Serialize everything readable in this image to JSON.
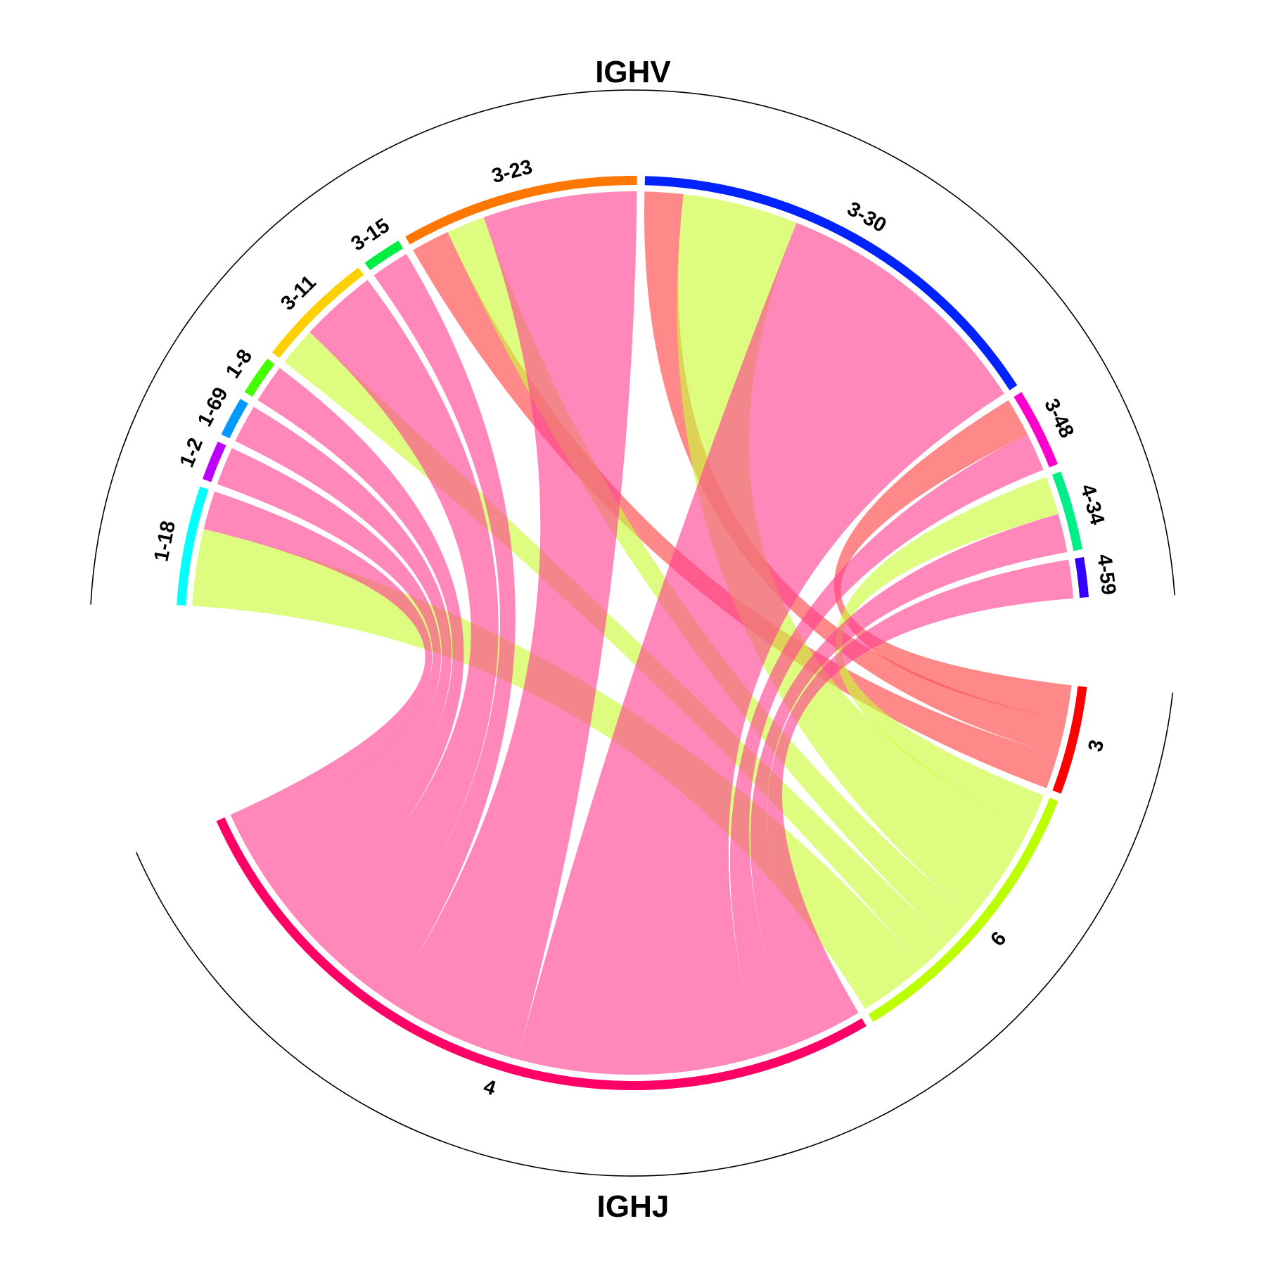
{
  "chart_data": {
    "type": "chord",
    "top_group_title": "IGHV",
    "bottom_group_title": "IGHJ",
    "top_segments": [
      {
        "name": "1-18",
        "color": "#00FFFF"
      },
      {
        "name": "1-2",
        "color": "#BB00FF"
      },
      {
        "name": "1-69",
        "color": "#0099FF"
      },
      {
        "name": "1-8",
        "color": "#44FF00"
      },
      {
        "name": "3-11",
        "color": "#FFD000"
      },
      {
        "name": "3-15",
        "color": "#00EE44"
      },
      {
        "name": "3-23",
        "color": "#FF7700"
      },
      {
        "name": "3-30",
        "color": "#0022FF"
      },
      {
        "name": "3-48",
        "color": "#FF00CC"
      },
      {
        "name": "4-34",
        "color": "#00EE88"
      },
      {
        "name": "4-59",
        "color": "#3300FF"
      }
    ],
    "bottom_segments": [
      {
        "name": "3",
        "color": "#FF0000"
      },
      {
        "name": "6",
        "color": "#BBFF00"
      },
      {
        "name": "4",
        "color": "#FF0066"
      }
    ],
    "links": [
      {
        "v": "1-18",
        "j": "6",
        "value": 2
      },
      {
        "v": "1-18",
        "j": "4",
        "value": 1
      },
      {
        "v": "1-2",
        "j": "4",
        "value": 1
      },
      {
        "v": "1-69",
        "j": "4",
        "value": 1
      },
      {
        "v": "1-8",
        "j": "4",
        "value": 1
      },
      {
        "v": "3-11",
        "j": "6",
        "value": 1
      },
      {
        "v": "3-11",
        "j": "4",
        "value": 2
      },
      {
        "v": "3-15",
        "j": "4",
        "value": 1
      },
      {
        "v": "3-23",
        "j": "3",
        "value": 1
      },
      {
        "v": "3-23",
        "j": "6",
        "value": 1
      },
      {
        "v": "3-23",
        "j": "4",
        "value": 4
      },
      {
        "v": "3-30",
        "j": "3",
        "value": 1
      },
      {
        "v": "3-30",
        "j": "6",
        "value": 3
      },
      {
        "v": "3-30",
        "j": "4",
        "value": 7
      },
      {
        "v": "3-48",
        "j": "3",
        "value": 1
      },
      {
        "v": "3-48",
        "j": "4",
        "value": 1
      },
      {
        "v": "4-34",
        "j": "6",
        "value": 1
      },
      {
        "v": "4-34",
        "j": "4",
        "value": 1
      },
      {
        "v": "4-59",
        "j": "4",
        "value": 1
      }
    ]
  }
}
